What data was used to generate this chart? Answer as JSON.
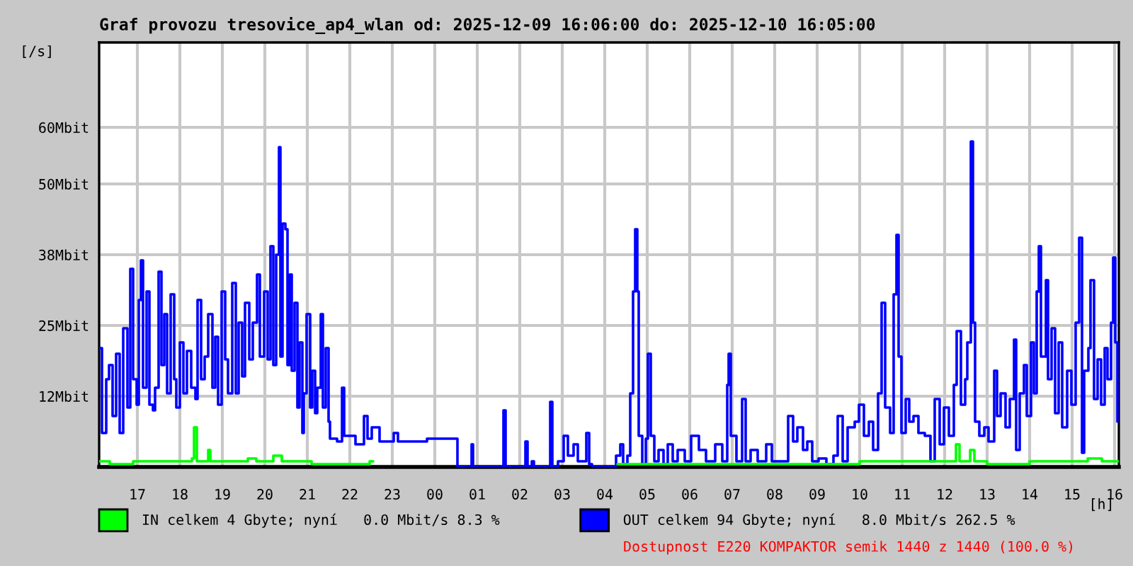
{
  "chart_data": {
    "type": "step",
    "title": "Graf provozu tresovice_ap4_wlan od: 2025-12-09 16:06:00 do: 2025-12-10 16:05:00",
    "xlabel": "[h]",
    "ylabel": "[/s]",
    "xlim": [
      "2025-12-09T16:06",
      "2025-12-10T16:06"
    ],
    "xticks": [
      {
        "value": "2025-12-09T17:00",
        "label": "17"
      },
      {
        "value": "2025-12-09T18:00",
        "label": "18"
      },
      {
        "value": "2025-12-09T19:00",
        "label": "19"
      },
      {
        "value": "2025-12-09T20:00",
        "label": "20"
      },
      {
        "value": "2025-12-09T21:00",
        "label": "21"
      },
      {
        "value": "2025-12-09T22:00",
        "label": "22"
      },
      {
        "value": "2025-12-09T23:00",
        "label": "23"
      },
      {
        "value": "2025-12-10T00:00",
        "label": "00"
      },
      {
        "value": "2025-12-10T01:00",
        "label": "01"
      },
      {
        "value": "2025-12-10T02:00",
        "label": "02"
      },
      {
        "value": "2025-12-10T03:00",
        "label": "03"
      },
      {
        "value": "2025-12-10T04:00",
        "label": "04"
      },
      {
        "value": "2025-12-10T05:00",
        "label": "05"
      },
      {
        "value": "2025-12-10T06:00",
        "label": "06"
      },
      {
        "value": "2025-12-10T07:00",
        "label": "07"
      },
      {
        "value": "2025-12-10T08:00",
        "label": "08"
      },
      {
        "value": "2025-12-10T09:00",
        "label": "09"
      },
      {
        "value": "2025-12-10T10:00",
        "label": "10"
      },
      {
        "value": "2025-12-10T11:00",
        "label": "11"
      },
      {
        "value": "2025-12-10T12:00",
        "label": "12"
      },
      {
        "value": "2025-12-10T13:00",
        "label": "13"
      },
      {
        "value": "2025-12-10T14:00",
        "label": "14"
      },
      {
        "value": "2025-12-10T15:00",
        "label": "15"
      },
      {
        "value": "2025-12-10T16:00",
        "label": "16"
      }
    ],
    "ylim": [
      0,
      75
    ],
    "yticks": [
      {
        "value": 12.5,
        "label": "12Mbit"
      },
      {
        "value": 25,
        "label": "25Mbit"
      },
      {
        "value": 37.5,
        "label": "38Mbit"
      },
      {
        "value": 50,
        "label": "50Mbit"
      },
      {
        "value": 60,
        "label": "60Mbit"
      }
    ],
    "grid": true,
    "legend": "bottom",
    "annotations": [
      "Dostupnost E220 KOMPAKTOR semik 1440 z 1440 (100.0 %)"
    ],
    "series": [
      {
        "name": "IN celkem 4 Gbyte; nyní   0.0 Mbit/s 8.3 %",
        "color": "#00ff00",
        "x": [
          "2025-12-09T16:06",
          "2025-12-09T16:12",
          "2025-12-09T16:21",
          "2025-12-09T16:36",
          "2025-12-09T16:54",
          "2025-12-09T17:06",
          "2025-12-09T17:16",
          "2025-12-09T17:27",
          "2025-12-09T17:42",
          "2025-12-09T18:00",
          "2025-12-09T18:12",
          "2025-12-09T18:17",
          "2025-12-09T18:20",
          "2025-12-09T18:24",
          "2025-12-09T18:30",
          "2025-12-09T18:40",
          "2025-12-09T18:43",
          "2025-12-09T19:00",
          "2025-12-09T19:18",
          "2025-12-09T19:36",
          "2025-12-09T19:48",
          "2025-12-09T20:00",
          "2025-12-09T20:12",
          "2025-12-09T20:24",
          "2025-12-09T20:36",
          "2025-12-09T20:54",
          "2025-12-09T21:06",
          "2025-12-09T21:30",
          "2025-12-09T21:48",
          "2025-12-09T22:12",
          "2025-12-09T22:28",
          "2025-12-09T22:33",
          "2025-12-10T04:18",
          "2025-12-10T04:30",
          "2025-12-10T05:00",
          "2025-12-10T05:30",
          "2025-12-10T06:00",
          "2025-12-10T06:30",
          "2025-12-10T07:00",
          "2025-12-10T07:30",
          "2025-12-10T08:00",
          "2025-12-10T08:30",
          "2025-12-10T09:00",
          "2025-12-10T09:30",
          "2025-12-10T10:00",
          "2025-12-10T10:30",
          "2025-12-10T11:06",
          "2025-12-10T11:30",
          "2025-12-10T12:00",
          "2025-12-10T12:16",
          "2025-12-10T12:21",
          "2025-12-10T12:36",
          "2025-12-10T12:42",
          "2025-12-10T13:00",
          "2025-12-10T13:30",
          "2025-12-10T14:00",
          "2025-12-10T14:10",
          "2025-12-10T14:30",
          "2025-12-10T15:00",
          "2025-12-10T15:22",
          "2025-12-10T15:42",
          "2025-12-10T16:00",
          "2025-12-10T16:05"
        ],
        "values": [
          1,
          1,
          0.5,
          0.5,
          1,
          1,
          1,
          1,
          1,
          1,
          1,
          1.5,
          7,
          1,
          1,
          3,
          1,
          1,
          1,
          1.5,
          1,
          1,
          2,
          1,
          1,
          1,
          0.5,
          0.5,
          0.5,
          0.5,
          1,
          null,
          0.5,
          0.5,
          0.5,
          0.5,
          0.5,
          0.5,
          0.5,
          0.5,
          0.5,
          0.5,
          0.5,
          0.5,
          1,
          1,
          1,
          1,
          1,
          4,
          1,
          3,
          1,
          0.5,
          0.5,
          1,
          1,
          1,
          1,
          1.5,
          1,
          1,
          1
        ]
      },
      {
        "name": "OUT celkem 94 Gbyte; nyní   8.0 Mbit/s 262.5 %",
        "color": "#0000ff",
        "x": [
          "2025-12-09T16:06",
          "2025-12-09T16:10",
          "2025-12-09T16:16",
          "2025-12-09T16:20",
          "2025-12-09T16:25",
          "2025-12-09T16:30",
          "2025-12-09T16:35",
          "2025-12-09T16:40",
          "2025-12-09T16:46",
          "2025-12-09T16:50",
          "2025-12-09T16:54",
          "2025-12-09T16:59",
          "2025-12-09T17:02",
          "2025-12-09T17:05",
          "2025-12-09T17:08",
          "2025-12-09T17:13",
          "2025-12-09T17:17",
          "2025-12-09T17:22",
          "2025-12-09T17:25",
          "2025-12-09T17:30",
          "2025-12-09T17:34",
          "2025-12-09T17:38",
          "2025-12-09T17:42",
          "2025-12-09T17:47",
          "2025-12-09T17:52",
          "2025-12-09T17:55",
          "2025-12-09T18:00",
          "2025-12-09T18:05",
          "2025-12-09T18:10",
          "2025-12-09T18:16",
          "2025-12-09T18:22",
          "2025-12-09T18:25",
          "2025-12-09T18:30",
          "2025-12-09T18:35",
          "2025-12-09T18:40",
          "2025-12-09T18:46",
          "2025-12-09T18:50",
          "2025-12-09T18:54",
          "2025-12-09T18:59",
          "2025-12-09T19:04",
          "2025-12-09T19:08",
          "2025-12-09T19:14",
          "2025-12-09T19:19",
          "2025-12-09T19:23",
          "2025-12-09T19:28",
          "2025-12-09T19:32",
          "2025-12-09T19:38",
          "2025-12-09T19:43",
          "2025-12-09T19:49",
          "2025-12-09T19:53",
          "2025-12-09T19:59",
          "2025-12-09T20:04",
          "2025-12-09T20:08",
          "2025-12-09T20:12",
          "2025-12-09T20:16",
          "2025-12-09T20:20",
          "2025-12-09T20:22",
          "2025-12-09T20:25",
          "2025-12-09T20:29",
          "2025-12-09T20:32",
          "2025-12-09T20:35",
          "2025-12-09T20:38",
          "2025-12-09T20:42",
          "2025-12-09T20:46",
          "2025-12-09T20:49",
          "2025-12-09T20:53",
          "2025-12-09T20:55",
          "2025-12-09T20:59",
          "2025-12-09T21:04",
          "2025-12-09T21:07",
          "2025-12-09T21:11",
          "2025-12-09T21:14",
          "2025-12-09T21:19",
          "2025-12-09T21:22",
          "2025-12-09T21:26",
          "2025-12-09T21:30",
          "2025-12-09T21:32",
          "2025-12-09T21:42",
          "2025-12-09T21:49",
          "2025-12-09T21:52",
          "2025-12-09T22:02",
          "2025-12-09T22:08",
          "2025-12-09T22:20",
          "2025-12-09T22:25",
          "2025-12-09T22:31",
          "2025-12-09T22:42",
          "2025-12-09T23:02",
          "2025-12-09T23:08",
          "2025-12-09T23:49",
          "2025-12-10T00:29",
          "2025-12-10T00:32",
          "2025-12-10T00:49",
          "2025-12-10T00:52",
          "2025-12-10T00:54",
          "2025-12-10T01:35",
          "2025-12-10T01:37",
          "2025-12-10T01:40",
          "2025-12-10T02:05",
          "2025-12-10T02:08",
          "2025-12-10T02:11",
          "2025-12-10T02:17",
          "2025-12-10T02:20",
          "2025-12-10T02:41",
          "2025-12-10T02:43",
          "2025-12-10T02:46",
          "2025-12-10T02:54",
          "2025-12-10T03:02",
          "2025-12-10T03:08",
          "2025-12-10T03:16",
          "2025-12-10T03:22",
          "2025-12-10T03:34",
          "2025-12-10T03:38",
          "2025-12-10T03:42",
          "2025-12-10T04:12",
          "2025-12-10T04:16",
          "2025-12-10T04:22",
          "2025-12-10T04:26",
          "2025-12-10T04:32",
          "2025-12-10T04:36",
          "2025-12-10T04:40",
          "2025-12-10T04:43",
          "2025-12-10T04:46",
          "2025-12-10T04:48",
          "2025-12-10T04:53",
          "2025-12-10T04:58",
          "2025-12-10T05:01",
          "2025-12-10T05:05",
          "2025-12-10T05:10",
          "2025-12-10T05:16",
          "2025-12-10T05:23",
          "2025-12-10T05:29",
          "2025-12-10T05:36",
          "2025-12-10T05:43",
          "2025-12-10T05:53",
          "2025-12-10T06:02",
          "2025-12-10T06:13",
          "2025-12-10T06:23",
          "2025-12-10T06:36",
          "2025-12-10T06:46",
          "2025-12-10T06:53",
          "2025-12-10T06:55",
          "2025-12-10T06:58",
          "2025-12-10T07:06",
          "2025-12-10T07:14",
          "2025-12-10T07:19",
          "2025-12-10T07:26",
          "2025-12-10T07:36",
          "2025-12-10T07:48",
          "2025-12-10T07:56",
          "2025-12-10T08:10",
          "2025-12-10T08:19",
          "2025-12-10T08:26",
          "2025-12-10T08:32",
          "2025-12-10T08:40",
          "2025-12-10T08:46",
          "2025-12-10T08:53",
          "2025-12-10T09:02",
          "2025-12-10T09:13",
          "2025-12-10T09:23",
          "2025-12-10T09:29",
          "2025-12-10T09:36",
          "2025-12-10T09:43",
          "2025-12-10T09:53",
          "2025-12-10T09:59",
          "2025-12-10T10:06",
          "2025-12-10T10:13",
          "2025-12-10T10:19",
          "2025-12-10T10:26",
          "2025-12-10T10:31",
          "2025-12-10T10:36",
          "2025-12-10T10:43",
          "2025-12-10T10:48",
          "2025-12-10T10:52",
          "2025-12-10T10:55",
          "2025-12-10T10:59",
          "2025-12-10T11:05",
          "2025-12-10T11:10",
          "2025-12-10T11:16",
          "2025-12-10T11:23",
          "2025-12-10T11:32",
          "2025-12-10T11:40",
          "2025-12-10T11:46",
          "2025-12-10T11:53",
          "2025-12-10T11:59",
          "2025-12-10T12:06",
          "2025-12-10T12:13",
          "2025-12-10T12:17",
          "2025-12-10T12:23",
          "2025-12-10T12:29",
          "2025-12-10T12:32",
          "2025-12-10T12:37",
          "2025-12-10T12:40",
          "2025-12-10T12:43",
          "2025-12-10T12:49",
          "2025-12-10T12:56",
          "2025-12-10T13:02",
          "2025-12-10T13:10",
          "2025-12-10T13:14",
          "2025-12-10T13:19",
          "2025-12-10T13:26",
          "2025-12-10T13:32",
          "2025-12-10T13:38",
          "2025-12-10T13:41",
          "2025-12-10T13:46",
          "2025-12-10T13:52",
          "2025-12-10T13:56",
          "2025-12-10T14:02",
          "2025-12-10T14:06",
          "2025-12-10T14:10",
          "2025-12-10T14:13",
          "2025-12-10T14:16",
          "2025-12-10T14:23",
          "2025-12-10T14:26",
          "2025-12-10T14:31",
          "2025-12-10T14:36",
          "2025-12-10T14:41",
          "2025-12-10T14:46",
          "2025-12-10T14:53",
          "2025-12-10T14:59",
          "2025-12-10T15:05",
          "2025-12-10T15:10",
          "2025-12-10T15:14",
          "2025-12-10T15:17",
          "2025-12-10T15:23",
          "2025-12-10T15:26",
          "2025-12-10T15:31",
          "2025-12-10T15:36",
          "2025-12-10T15:41",
          "2025-12-10T15:46",
          "2025-12-10T15:50",
          "2025-12-10T15:55",
          "2025-12-10T15:58",
          "2025-12-10T16:01",
          "2025-12-10T16:04"
        ],
        "values": [
          21,
          6,
          15.5,
          18,
          9,
          20,
          6,
          24.5,
          10.5,
          35,
          15.5,
          11,
          29.5,
          36.5,
          14,
          31,
          11,
          10,
          14,
          34.5,
          18,
          27,
          13,
          30.5,
          15.5,
          10.5,
          22,
          13,
          20.5,
          14,
          12,
          29.5,
          15.5,
          19.5,
          27,
          14,
          23,
          11,
          31,
          19,
          13,
          32.5,
          13,
          25.5,
          16,
          29,
          19,
          25.5,
          34,
          19.5,
          31,
          19,
          39,
          18,
          37.5,
          56.5,
          19.5,
          43,
          42,
          18,
          34,
          17,
          29,
          10.5,
          22,
          6,
          13,
          27,
          10.5,
          17,
          9.5,
          14,
          27,
          10.5,
          21,
          8,
          5,
          4.5,
          14,
          5.5,
          5.5,
          4,
          9,
          5,
          7,
          4.5,
          6,
          4.5,
          5,
          5,
          0,
          0,
          4,
          0,
          0,
          10,
          0,
          0,
          4.5,
          0,
          1,
          0,
          0,
          11.5,
          0,
          1,
          5.5,
          2,
          4,
          1,
          6,
          0.5,
          0,
          0,
          2,
          4,
          0.5,
          2,
          13,
          31,
          42,
          31,
          5.5,
          0.5,
          5,
          20,
          5.5,
          1,
          3,
          0.5,
          4,
          1,
          3,
          1,
          5.5,
          3,
          1,
          4,
          1,
          14.5,
          20,
          5.5,
          1,
          12,
          1,
          3,
          1,
          4,
          1,
          1,
          9,
          4.5,
          7,
          3,
          4.5,
          1,
          1.5,
          0.5,
          2,
          9,
          1,
          7,
          8,
          11,
          5.5,
          8,
          3,
          13,
          29,
          10.5,
          6,
          30.5,
          41,
          19.5,
          6,
          12,
          8,
          9,
          6,
          5.5,
          1,
          12,
          4,
          10.5,
          5.5,
          14.5,
          24,
          11,
          15.5,
          22,
          57.5,
          25.5,
          8,
          5.5,
          7,
          4.5,
          17,
          9,
          13,
          7,
          12,
          22.5,
          3,
          13,
          18,
          9,
          22,
          13,
          31,
          39,
          19.5,
          33,
          15.5,
          24.5,
          9.5,
          22,
          7,
          17,
          11,
          25.5,
          40.5,
          2.5,
          17,
          21,
          33,
          12,
          19,
          11,
          21,
          15.5,
          25.5,
          37,
          22,
          8
        ]
      }
    ]
  }
}
